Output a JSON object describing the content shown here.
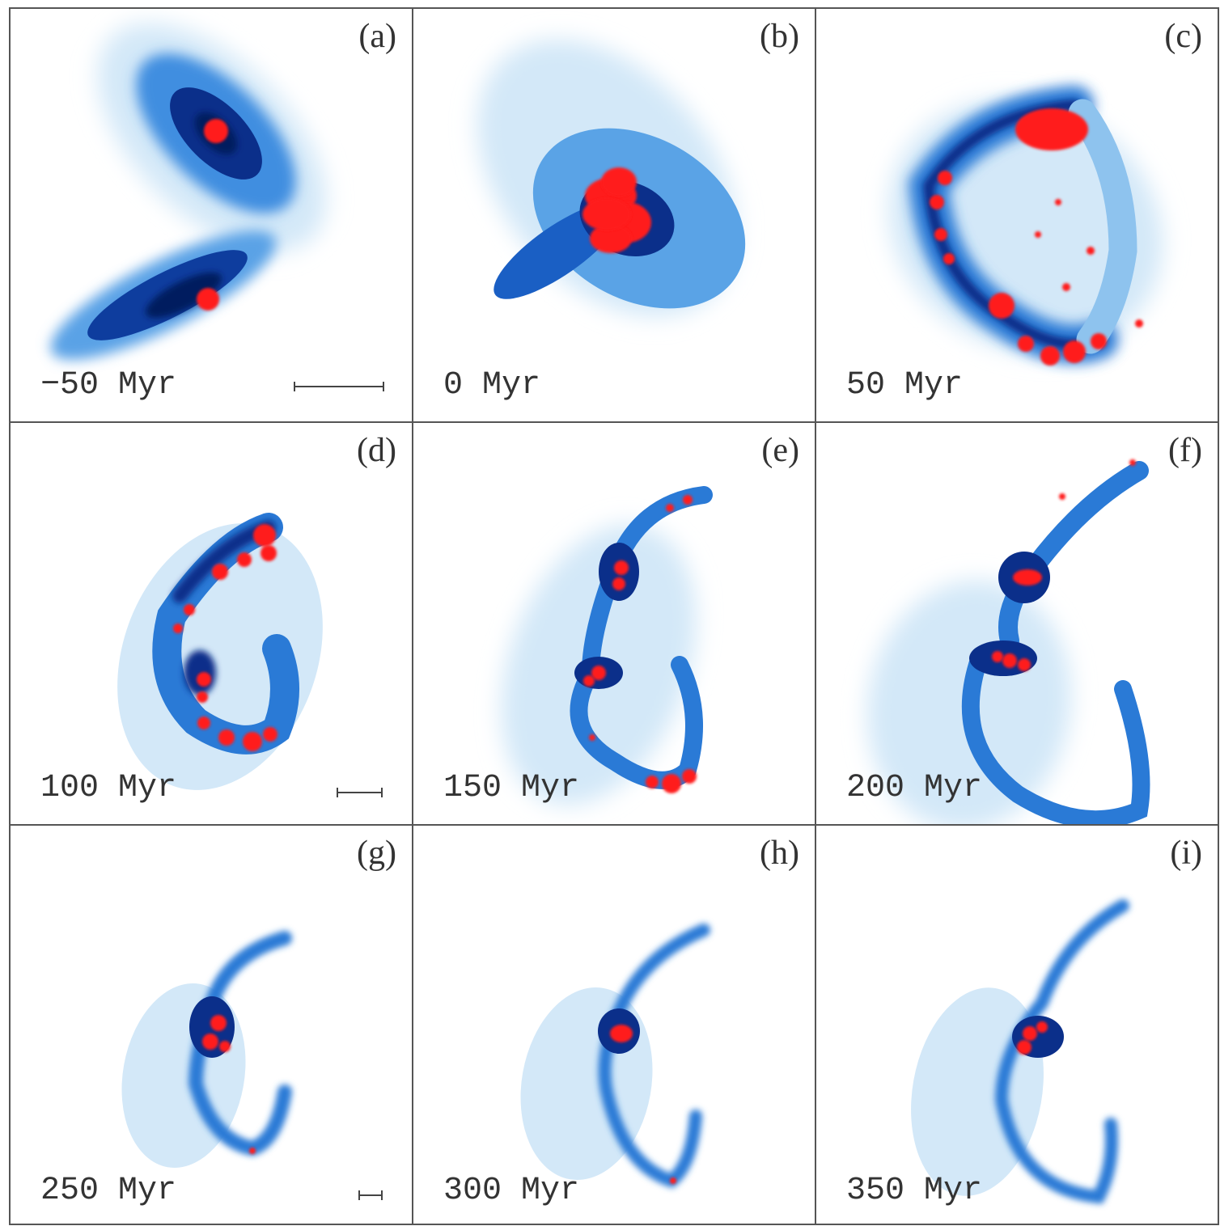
{
  "panels": [
    {
      "label": "(a)",
      "time": "−50 Myr"
    },
    {
      "label": "(b)",
      "time": "0 Myr"
    },
    {
      "label": "(c)",
      "time": "50 Myr"
    },
    {
      "label": "(d)",
      "time": "100 Myr"
    },
    {
      "label": "(e)",
      "time": "150 Myr"
    },
    {
      "label": "(f)",
      "time": "200 Myr"
    },
    {
      "label": "(g)",
      "time": "250 Myr"
    },
    {
      "label": "(h)",
      "time": "300 Myr"
    },
    {
      "label": "(i)",
      "time": "350 Myr"
    }
  ]
}
